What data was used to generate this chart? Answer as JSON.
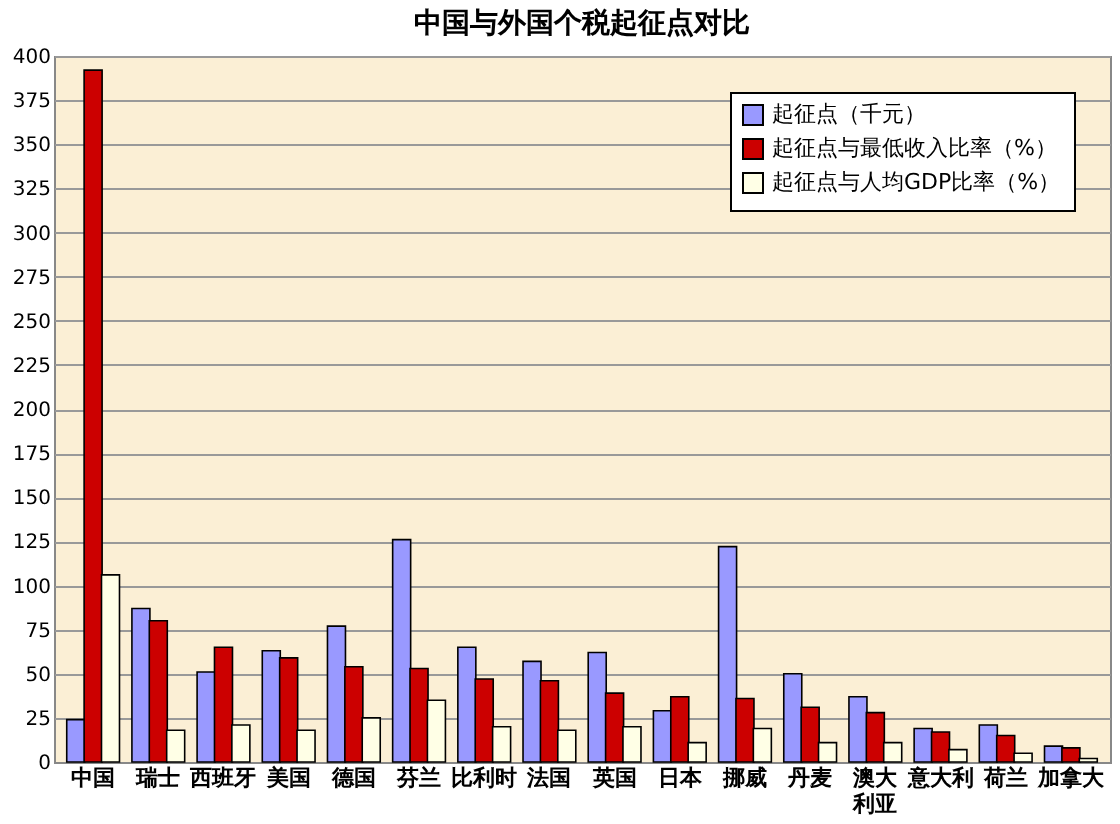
{
  "chart_data": {
    "type": "bar",
    "title": "中国与外国个税起征点对比",
    "categories": [
      "中国",
      "瑞士",
      "西班牙",
      "美国",
      "德国",
      "芬兰",
      "比利时",
      "法国",
      "英国",
      "日本",
      "挪威",
      "丹麦",
      "澳大利亚",
      "意大利",
      "荷兰",
      "加拿大"
    ],
    "series": [
      {
        "name": "起征点（千元）",
        "color": "#9999ff",
        "values": [
          24,
          87,
          51,
          63,
          77,
          126,
          65,
          57,
          62,
          29,
          122,
          50,
          37,
          19,
          21,
          9
        ]
      },
      {
        "name": "起征点与最低收入比率（%）",
        "color": "#cc0000",
        "values": [
          392,
          80,
          65,
          59,
          54,
          53,
          47,
          46,
          39,
          37,
          36,
          31,
          28,
          17,
          15,
          8
        ]
      },
      {
        "name": "起征点与人均GDP比率（%）",
        "color": "#ffffe6",
        "values": [
          106,
          18,
          21,
          18,
          25,
          35,
          20,
          18,
          20,
          11,
          19,
          11,
          11,
          7,
          5,
          2
        ]
      }
    ],
    "ylim": [
      0,
      400
    ],
    "yticks": [
      0,
      25,
      50,
      75,
      100,
      125,
      150,
      175,
      200,
      225,
      250,
      275,
      300,
      325,
      350,
      375,
      400
    ],
    "grid": "y",
    "legend": "top right"
  }
}
